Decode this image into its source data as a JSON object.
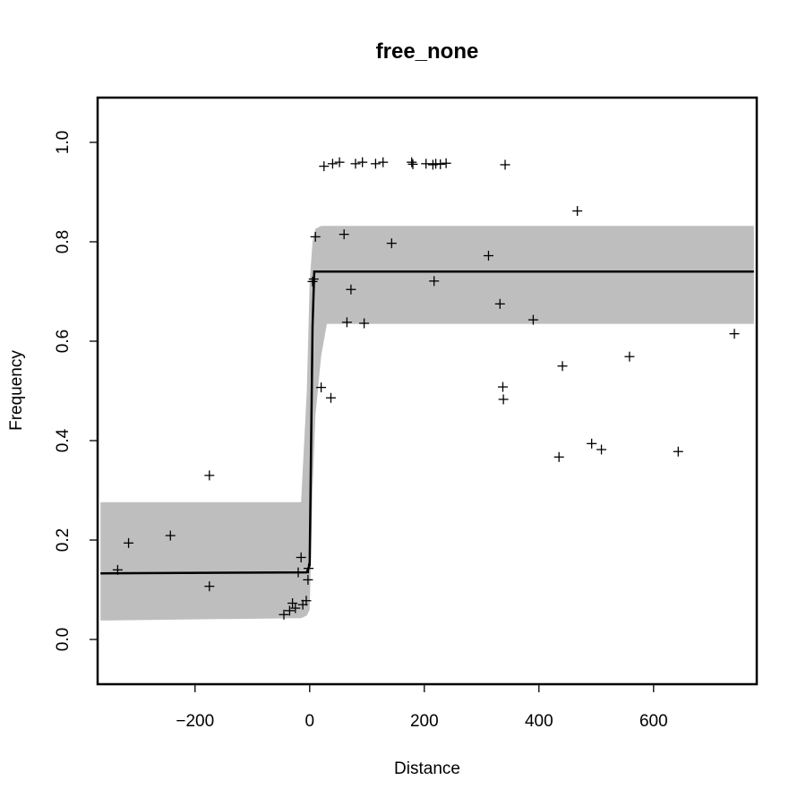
{
  "chart_data": {
    "type": "scatter",
    "title": "free_none",
    "xlabel": "Distance",
    "ylabel": "Frequency",
    "xlim": [
      -370,
      780
    ],
    "ylim": [
      -0.09,
      1.09
    ],
    "x_ticks": [
      -200,
      0,
      200,
      400,
      600
    ],
    "x_tick_labels": [
      "−200",
      "0",
      "200",
      "400",
      "600"
    ],
    "y_ticks": [
      0.0,
      0.2,
      0.4,
      0.6,
      0.8,
      1.0
    ],
    "y_tick_labels": [
      "0.0",
      "0.2",
      "0.4",
      "0.6",
      "0.8",
      "1.0"
    ],
    "grid": false,
    "colors": {
      "band": "#bebebe",
      "line": "#000000",
      "points": "#000000"
    },
    "fit_line": {
      "x": [
        -365,
        -5,
        0,
        2,
        5,
        8,
        775
      ],
      "y": [
        0.133,
        0.135,
        0.15,
        0.35,
        0.63,
        0.74,
        0.74
      ]
    },
    "confidence_band": {
      "x": [
        -365,
        -15,
        -5,
        0,
        5,
        10,
        20,
        30,
        775
      ],
      "lower": [
        0.038,
        0.043,
        0.048,
        0.06,
        0.3,
        0.45,
        0.57,
        0.635,
        0.635
      ],
      "upper": [
        0.276,
        0.276,
        0.5,
        0.72,
        0.8,
        0.826,
        0.832,
        0.832,
        0.832
      ]
    },
    "points": [
      {
        "x": -335,
        "y": 0.14
      },
      {
        "x": -316,
        "y": 0.194
      },
      {
        "x": -243,
        "y": 0.209
      },
      {
        "x": -175,
        "y": 0.33
      },
      {
        "x": -175,
        "y": 0.107
      },
      {
        "x": -45,
        "y": 0.05
      },
      {
        "x": -35,
        "y": 0.058
      },
      {
        "x": -30,
        "y": 0.073
      },
      {
        "x": -25,
        "y": 0.063
      },
      {
        "x": -20,
        "y": 0.135
      },
      {
        "x": -15,
        "y": 0.165
      },
      {
        "x": -12,
        "y": 0.07
      },
      {
        "x": -6,
        "y": 0.078
      },
      {
        "x": -3,
        "y": 0.12
      },
      {
        "x": -2,
        "y": 0.143
      },
      {
        "x": 5,
        "y": 0.72
      },
      {
        "x": 7,
        "y": 0.725
      },
      {
        "x": 10,
        "y": 0.81
      },
      {
        "x": 20,
        "y": 0.507
      },
      {
        "x": 25,
        "y": 0.952
      },
      {
        "x": 37,
        "y": 0.486
      },
      {
        "x": 40,
        "y": 0.957
      },
      {
        "x": 52,
        "y": 0.96
      },
      {
        "x": 60,
        "y": 0.815
      },
      {
        "x": 65,
        "y": 0.638
      },
      {
        "x": 72,
        "y": 0.704
      },
      {
        "x": 80,
        "y": 0.957
      },
      {
        "x": 92,
        "y": 0.96
      },
      {
        "x": 95,
        "y": 0.636
      },
      {
        "x": 115,
        "y": 0.957
      },
      {
        "x": 128,
        "y": 0.96
      },
      {
        "x": 143,
        "y": 0.797
      },
      {
        "x": 178,
        "y": 0.96
      },
      {
        "x": 180,
        "y": 0.956
      },
      {
        "x": 203,
        "y": 0.957
      },
      {
        "x": 215,
        "y": 0.955
      },
      {
        "x": 217,
        "y": 0.721
      },
      {
        "x": 220,
        "y": 0.957
      },
      {
        "x": 228,
        "y": 0.956
      },
      {
        "x": 238,
        "y": 0.958
      },
      {
        "x": 312,
        "y": 0.772
      },
      {
        "x": 332,
        "y": 0.675
      },
      {
        "x": 337,
        "y": 0.508
      },
      {
        "x": 338,
        "y": 0.483
      },
      {
        "x": 341,
        "y": 0.955
      },
      {
        "x": 390,
        "y": 0.643
      },
      {
        "x": 435,
        "y": 0.367
      },
      {
        "x": 441,
        "y": 0.55
      },
      {
        "x": 467,
        "y": 0.862
      },
      {
        "x": 492,
        "y": 0.394
      },
      {
        "x": 509,
        "y": 0.382
      },
      {
        "x": 558,
        "y": 0.569
      },
      {
        "x": 643,
        "y": 0.378
      },
      {
        "x": 741,
        "y": 0.615
      }
    ]
  }
}
